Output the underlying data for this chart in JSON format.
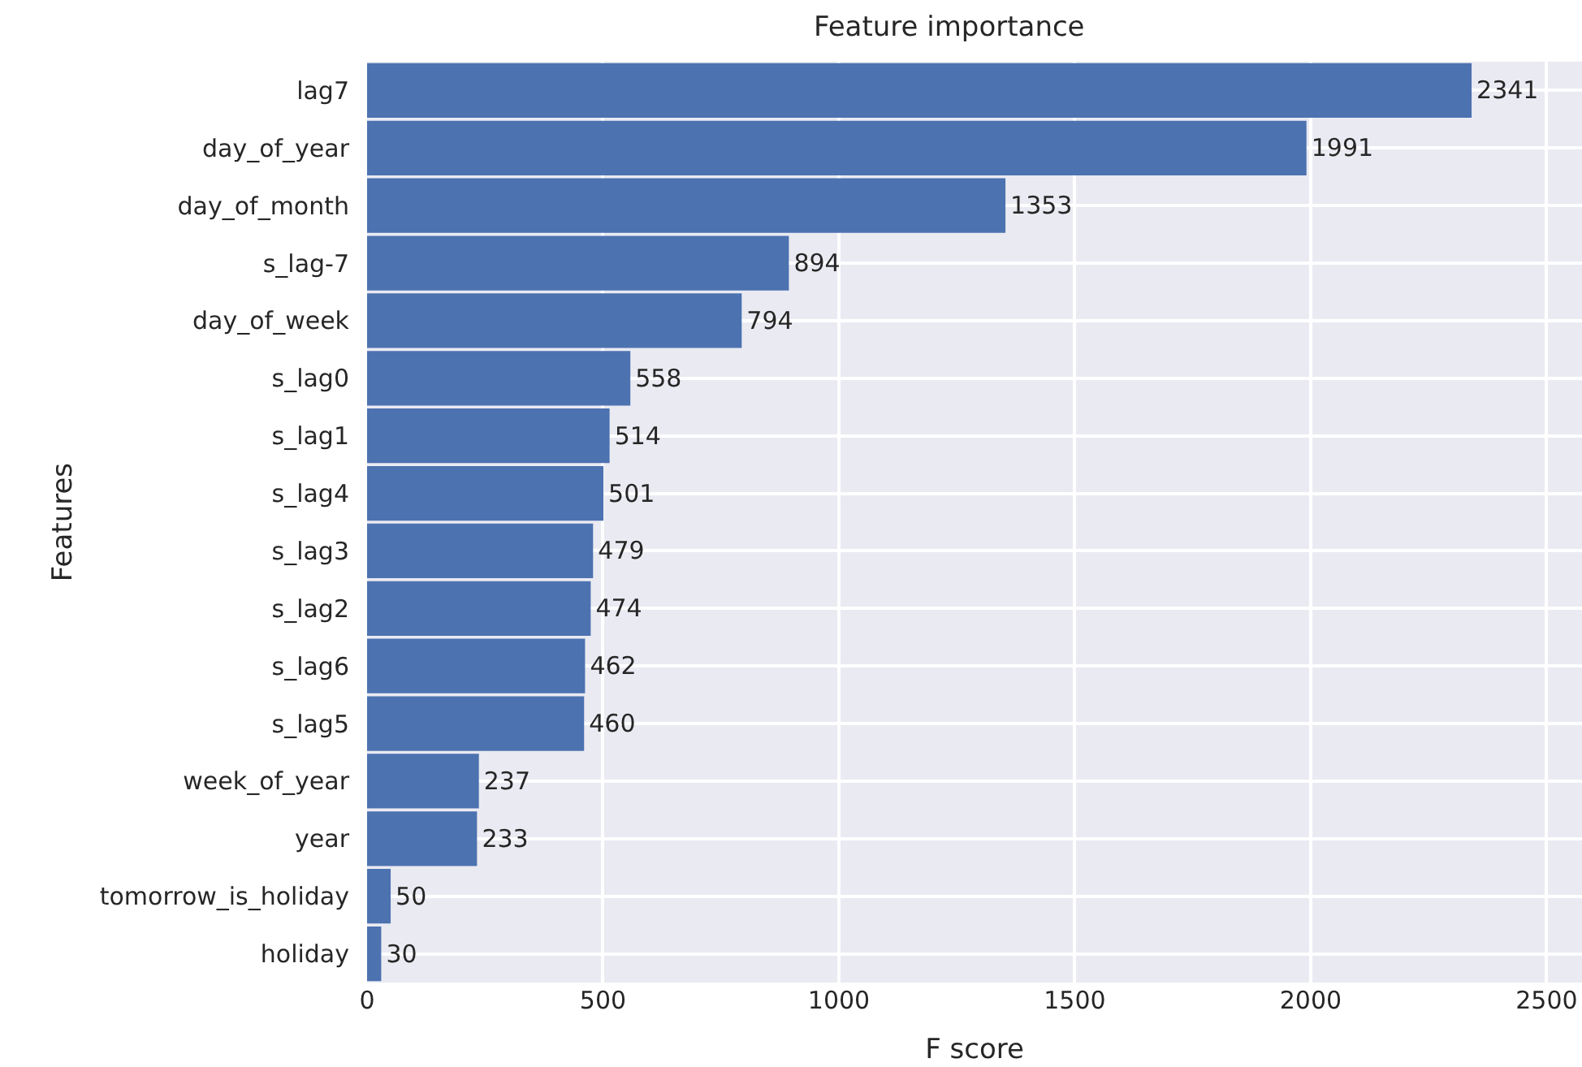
{
  "chart_data": {
    "type": "bar",
    "orientation": "horizontal",
    "title": "Feature importance",
    "xlabel": "F score",
    "ylabel": "Features",
    "categories": [
      "lag7",
      "day_of_year",
      "day_of_month",
      "s_lag-7",
      "day_of_week",
      "s_lag0",
      "s_lag1",
      "s_lag4",
      "s_lag3",
      "s_lag2",
      "s_lag6",
      "s_lag5",
      "week_of_year",
      "year",
      "tomorrow_is_holiday",
      "holiday"
    ],
    "values": [
      2341,
      1991,
      1353,
      894,
      794,
      558,
      514,
      501,
      479,
      474,
      462,
      460,
      237,
      233,
      50,
      30
    ],
    "color": "#4c72b0",
    "xlim": [
      0,
      2575
    ],
    "xticks": [
      0,
      500,
      1000,
      1500,
      2000,
      2500
    ],
    "grid": true,
    "data_labels": true
  }
}
